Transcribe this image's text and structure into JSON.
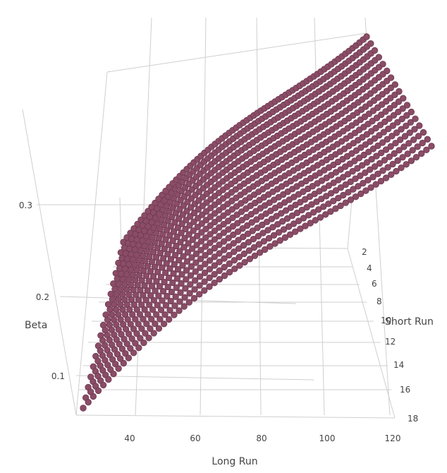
{
  "chart_data": {
    "type": "scatter3d",
    "axes": {
      "x": {
        "title": "Long Run",
        "ticks": [
          "40",
          "60",
          "80",
          "100",
          "120"
        ],
        "range": [
          22,
          121
        ]
      },
      "y": {
        "title": "Short Run",
        "ticks": [
          "2",
          "4",
          "6",
          "8",
          "10",
          "12",
          "14",
          "16",
          "18"
        ],
        "range": [
          2,
          18
        ]
      },
      "z": {
        "title": "Beta",
        "ticks": [
          "0.1",
          "0.2",
          "0.3"
        ],
        "range": [
          0.05,
          0.35
        ]
      }
    },
    "grid": true,
    "marker_color": "#8a4c66",
    "surface": {
      "x_start": 22,
      "x_end": 120,
      "x_count": 70,
      "short_runs": [
        2,
        3,
        4,
        5,
        6,
        7,
        8,
        9,
        10,
        11,
        12,
        13,
        14,
        15,
        16,
        17,
        18
      ],
      "z_at_long_run_start": 0.066,
      "z_at_long_run_end": 0.345,
      "z_drop_per_short_run": 0.0034,
      "curvature": 0.35
    }
  }
}
